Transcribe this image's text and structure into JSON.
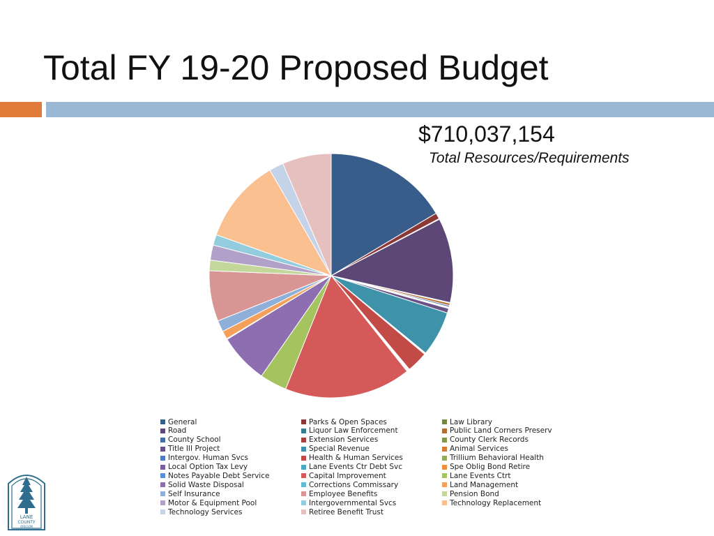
{
  "slide": {
    "title": "Total FY 19-20 Proposed Budget",
    "total_amount": "$710,037,154",
    "total_caption": "Total Resources/Requirements"
  },
  "logo": {
    "line1": "LANE",
    "line2": "COUNTY",
    "line3": "OREGON"
  },
  "chart_data": {
    "type": "pie",
    "categories": [
      "General",
      "Parks & Open Spaces",
      "Law Library",
      "Road",
      "Liquor Law Enforcement",
      "Public Land Corners Preserv",
      "County School",
      "Extension Services",
      "County Clerk Records",
      "Title III Project",
      "Special Revenue",
      "Animal Services",
      "Intergov. Human Svcs",
      "Health & Human Services",
      "Trillium Behavioral Health",
      "Local Option Tax Levy",
      "Lane Events Ctr Debt Svc",
      "Spe Oblig Bond Retire",
      "Notes Payable Debt Service",
      "Capital Improvement",
      "Lane Events Ctrt",
      "Solid Waste Disposal",
      "Corrections Commissary",
      "Land Management",
      "Self Insurance",
      "Employee Benefits",
      "Pension Bond",
      "Motor & Equipment Pool",
      "Intergovernmental Svcs",
      "Technology Replacement",
      "Technology Services",
      "Retiree Benefit Trust"
    ],
    "values": [
      16.5,
      0.8,
      0.1,
      11.2,
      0.1,
      0.3,
      0.2,
      0.1,
      0.1,
      0.6,
      6.0,
      0.1,
      0.1,
      2.8,
      0.1,
      0.1,
      0.1,
      0.1,
      0.0,
      16.8,
      3.6,
      6.6,
      0.1,
      1.1,
      1.5,
      6.7,
      1.4,
      2.0,
      1.4,
      11.2,
      1.9,
      6.5
    ],
    "legend_position": "bottom",
    "colors": [
      "#385d8a",
      "#8c3836",
      "#71893f",
      "#5c4776",
      "#357d91",
      "#b66d31",
      "#426da9",
      "#a9403d",
      "#7f9948",
      "#6a5289",
      "#3e93ab",
      "#d47d36",
      "#4c7ebf",
      "#c24a47",
      "#92ad53",
      "#7b5f9d",
      "#46a8c3",
      "#f08e3c",
      "#5a8fd6",
      "#d6595a",
      "#a5c35f",
      "#8c6eb1",
      "#5fbcd6",
      "#f5a05a",
      "#8eafd8",
      "#d99594",
      "#c4d79b",
      "#b1a0c7",
      "#93cddd",
      "#fac090",
      "#c5d3e8",
      "#e6c0bf"
    ]
  },
  "legend": {
    "columns": [
      [
        "General",
        "Road",
        "County School",
        "Title III Project",
        "Intergov. Human Svcs",
        "Local Option Tax Levy",
        "Notes Payable Debt Service",
        "Solid Waste Disposal",
        "Self Insurance",
        "Motor & Equipment Pool",
        "Technology Services"
      ],
      [
        "Parks & Open Spaces",
        "Liquor Law Enforcement",
        "Extension Services",
        "Special Revenue",
        "Health & Human Services",
        "Lane Events Ctr Debt Svc",
        "Capital Improvement",
        "Corrections Commissary",
        "Employee Benefits",
        "Intergovernmental Svcs",
        "Retiree Benefit Trust"
      ],
      [
        "Law Library",
        "Public Land Corners Preserv",
        "County Clerk Records",
        "Animal Services",
        "Trillium Behavioral Health",
        "Spe Oblig Bond Retire",
        "Lane Events Ctrt",
        "Land Management",
        "Pension Bond",
        "Technology Replacement"
      ]
    ],
    "column_colors": [
      [
        "#385d8a",
        "#5c4776",
        "#426da9",
        "#6a5289",
        "#4c7ebf",
        "#7b5f9d",
        "#5a8fd6",
        "#8c6eb1",
        "#8eafd8",
        "#b1a0c7",
        "#c5d3e8"
      ],
      [
        "#8c3836",
        "#357d91",
        "#a9403d",
        "#3e93ab",
        "#c24a47",
        "#46a8c3",
        "#d6595a",
        "#5fbcd6",
        "#d99594",
        "#93cddd",
        "#e6c0bf"
      ],
      [
        "#71893f",
        "#b66d31",
        "#7f9948",
        "#d47d36",
        "#92ad53",
        "#f08e3c",
        "#a5c35f",
        "#f5a05a",
        "#c4d79b",
        "#fac090"
      ]
    ]
  },
  "theme": {
    "accent_orange": "#e07b39",
    "accent_blue": "#9ab7d3"
  }
}
